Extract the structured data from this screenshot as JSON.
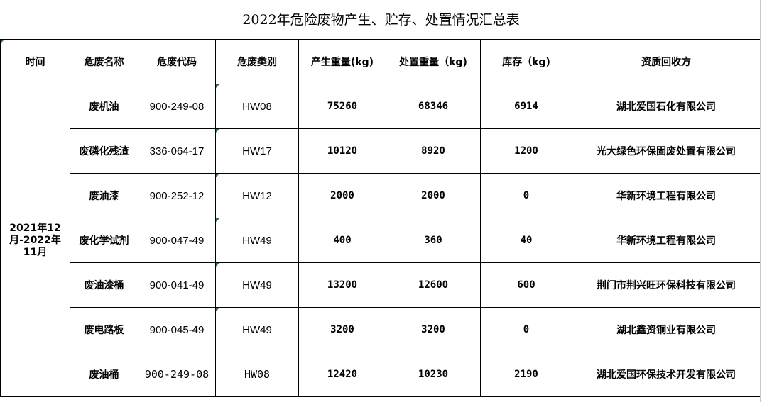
{
  "title": "2022年危险废物产生、贮存、处置情况汇总表",
  "headers": [
    "时间",
    "危废名称",
    "危废代码",
    "危废类别",
    "产生重量(kg)",
    "处置重量（kg)",
    "库存（kg)",
    "资质回收方"
  ],
  "period": "2021年12月-2022年11月",
  "rows": [
    {
      "name": "废机油",
      "code": "900-249-08",
      "category": "HW08",
      "produced": "75260",
      "disposed": "68346",
      "stock": "6914",
      "recycler": "湖北爱国石化有限公司"
    },
    {
      "name": "废磷化残渣",
      "code": "336-064-17",
      "category": "HW17",
      "produced": "10120",
      "disposed": "8920",
      "stock": "1200",
      "recycler": "光大绿色环保固废处置有限公司"
    },
    {
      "name": "废油漆",
      "code": "900-252-12",
      "category": "HW12",
      "produced": "2000",
      "disposed": "2000",
      "stock": "0",
      "recycler": "华新环境工程有限公司"
    },
    {
      "name": "废化学试剂",
      "code": "900-047-49",
      "category": "HW49",
      "produced": "400",
      "disposed": "360",
      "stock": "40",
      "recycler": "华新环境工程有限公司"
    },
    {
      "name": "废油漆桶",
      "code": "900-041-49",
      "category": "HW49",
      "produced": "13200",
      "disposed": "12600",
      "stock": "600",
      "recycler": "荆门市荆兴旺环保科技有限公司"
    },
    {
      "name": "废电路板",
      "code": "900-045-49",
      "category": "HW49",
      "produced": "3200",
      "disposed": "3200",
      "stock": "0",
      "recycler": "湖北鑫资铜业有限公司"
    },
    {
      "name": "废油桶",
      "code": "900-249-08",
      "category": "HW08",
      "produced": "12420",
      "disposed": "10230",
      "stock": "2190",
      "recycler": "湖北爱国环保技术开发有限公司"
    }
  ],
  "colors": {
    "cell_marker": "#217346"
  }
}
